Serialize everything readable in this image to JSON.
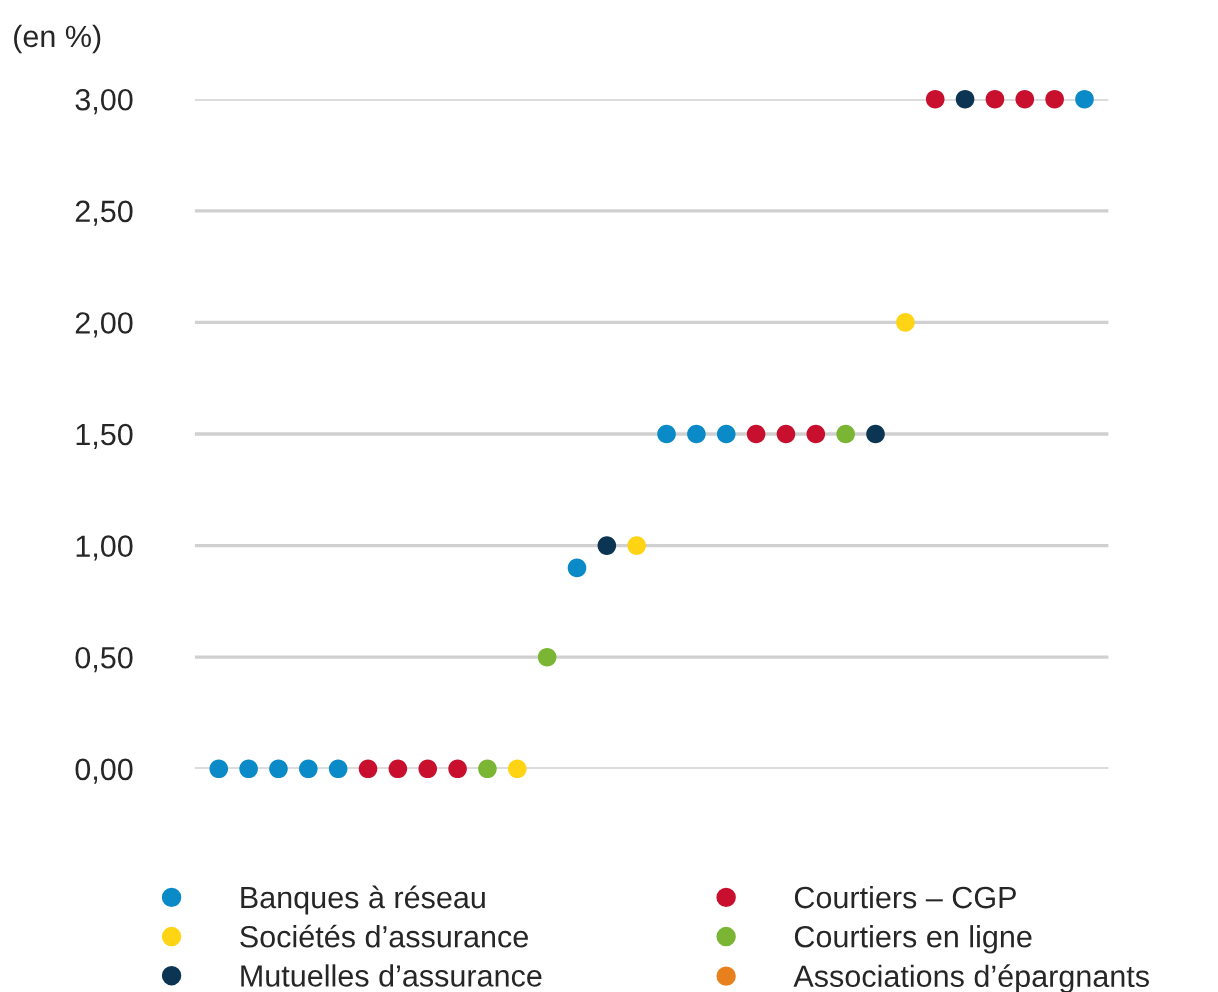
{
  "chart_data": {
    "type": "scatter",
    "ylabel": "(en %)",
    "categories": [
      null,
      null,
      null,
      null,
      null,
      null,
      null,
      null,
      null,
      null,
      null,
      null,
      null,
      null,
      null,
      null,
      null,
      null,
      null,
      null,
      null,
      null,
      null,
      null,
      null,
      null,
      null,
      null,
      null,
      null
    ],
    "series": [
      {
        "name": "Banques à réseau",
        "color": "#0a8ac6",
        "values": [
          0,
          0,
          0,
          0,
          0,
          null,
          null,
          null,
          null,
          null,
          null,
          null,
          0.9,
          null,
          null,
          1.5,
          1.5,
          1.5,
          null,
          null,
          null,
          null,
          null,
          null,
          null,
          null,
          null,
          null,
          null,
          3.0
        ]
      },
      {
        "name": "Sociétés d’assurance",
        "color": "#ffd414",
        "values": [
          null,
          null,
          null,
          null,
          null,
          null,
          null,
          null,
          null,
          null,
          0,
          null,
          null,
          null,
          1.0,
          null,
          null,
          null,
          null,
          null,
          null,
          null,
          null,
          2.0,
          null,
          null,
          null,
          null,
          null,
          null
        ]
      },
      {
        "name": "Mutuelles d’assurance",
        "color": "#0b3552",
        "values": [
          null,
          null,
          null,
          null,
          null,
          null,
          null,
          null,
          null,
          null,
          null,
          null,
          null,
          1.0,
          null,
          null,
          null,
          null,
          null,
          null,
          null,
          null,
          1.5,
          null,
          null,
          3.0,
          null,
          null,
          null,
          null
        ]
      },
      {
        "name": "Courtiers – CGP",
        "color": "#c8102e",
        "values": [
          null,
          null,
          null,
          null,
          null,
          0,
          0,
          0,
          0,
          null,
          null,
          null,
          null,
          null,
          null,
          null,
          null,
          null,
          1.5,
          1.5,
          1.5,
          null,
          null,
          null,
          3.0,
          null,
          3.0,
          3.0,
          3.0,
          null
        ]
      },
      {
        "name": "Courtiers en ligne",
        "color": "#7ab534",
        "values": [
          null,
          null,
          null,
          null,
          null,
          null,
          null,
          null,
          null,
          0,
          null,
          0.5,
          null,
          null,
          null,
          null,
          null,
          null,
          null,
          null,
          null,
          1.5,
          null,
          null,
          null,
          null,
          null,
          null,
          null,
          null
        ]
      },
      {
        "name": "Associations d’épargnants",
        "color": "#e8801e",
        "values": [
          null,
          null,
          null,
          null,
          null,
          null,
          null,
          null,
          null,
          null,
          null,
          null,
          null,
          null,
          null,
          null,
          null,
          null,
          null,
          null,
          null,
          null,
          null,
          null,
          null,
          null,
          null,
          null,
          null,
          null
        ]
      }
    ],
    "ylim": [
      0,
      3
    ],
    "yticks": [
      {
        "value": 0,
        "label": "0,00"
      },
      {
        "value": 0.5,
        "label": "0,50"
      },
      {
        "value": 1,
        "label": "1,00"
      },
      {
        "value": 1.5,
        "label": "1,50"
      },
      {
        "value": 2,
        "label": "2,00"
      },
      {
        "value": 2.5,
        "label": "2,50"
      },
      {
        "value": 3,
        "label": "3,00"
      }
    ],
    "grid": "y",
    "legend": "bottom",
    "marker": "circle",
    "tick_labels": "y"
  }
}
